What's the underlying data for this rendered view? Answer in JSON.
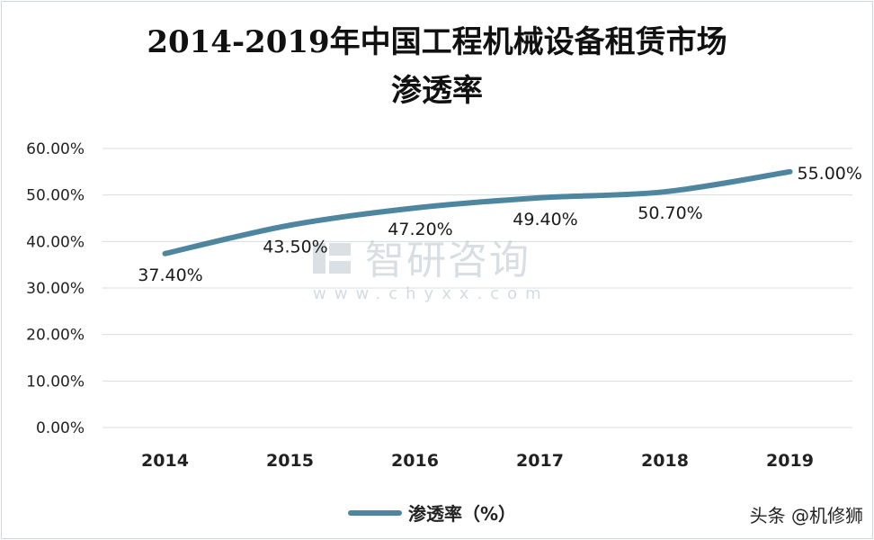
{
  "chart_data": {
    "type": "line",
    "title_line1": "2014-2019年中国工程机械设备租赁市场",
    "title_line2": "渗透率",
    "categories": [
      "2014",
      "2015",
      "2016",
      "2017",
      "2018",
      "2019"
    ],
    "series": [
      {
        "name": "渗透率（%）",
        "values": [
          37.4,
          43.5,
          47.2,
          49.4,
          50.7,
          55.0
        ],
        "labels": [
          "37.40%",
          "43.50%",
          "47.20%",
          "49.40%",
          "50.70%",
          "55.00%"
        ],
        "color": "#4e859f"
      }
    ],
    "ylim": [
      0,
      60
    ],
    "yticks": [
      0,
      10,
      20,
      30,
      40,
      50,
      60
    ],
    "ytick_labels": [
      "0.00%",
      "10.00%",
      "20.00%",
      "30.00%",
      "40.00%",
      "50.00%",
      "60.00%"
    ],
    "grid": true,
    "legend": "bottom-center"
  },
  "watermark": {
    "text": "智研咨询",
    "url": "www.chyxx.com"
  },
  "source_badge": "头条 @机修狮"
}
